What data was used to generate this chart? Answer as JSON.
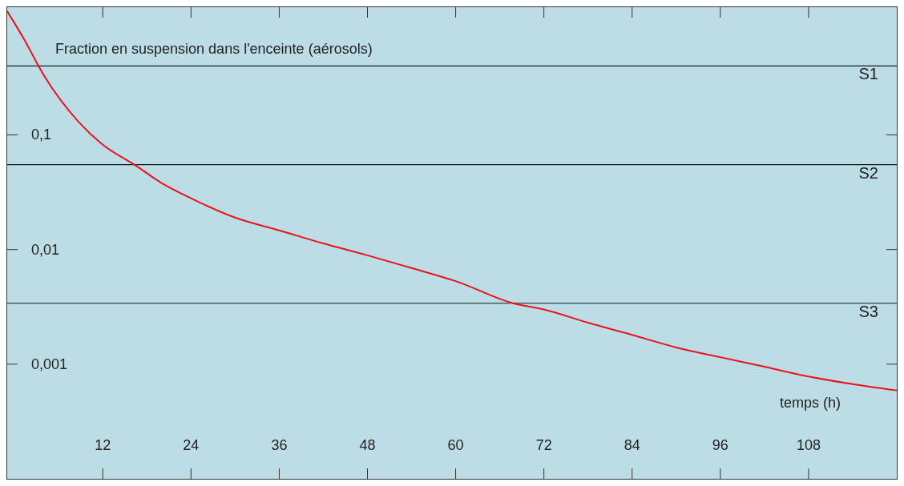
{
  "chart_data": {
    "type": "line",
    "ylabel": "Fraction en suspension dans l'enceinte (aérosols)",
    "xlabel": "temps (h)",
    "x": [
      -1,
      1.2,
      4,
      8.7,
      12,
      16.3,
      20,
      24,
      30,
      36,
      42,
      48,
      54,
      60,
      67.8,
      72,
      78,
      84,
      90,
      96,
      102,
      108,
      114,
      120
    ],
    "series": [
      {
        "color": "#e8141c",
        "values": [
          1.2,
          0.7,
          0.33,
          0.13,
          0.082,
          0.055,
          0.038,
          0.028,
          0.019,
          0.0147,
          0.0113,
          0.0089,
          0.0069,
          0.0053,
          0.0034,
          0.003,
          0.0023,
          0.0018,
          0.0014,
          0.00115,
          0.00095,
          0.00078,
          0.00067,
          0.00059
        ]
      }
    ],
    "xlim": [
      -1,
      120
    ],
    "xticks": [
      12,
      24,
      36,
      48,
      60,
      72,
      84,
      96,
      108
    ],
    "ylim": [
      0.0001,
      1.3
    ],
    "yticks": [
      {
        "value": 0.1,
        "label": "0,1"
      },
      {
        "value": 0.01,
        "label": "0,01"
      },
      {
        "value": 0.001,
        "label": "0,001"
      }
    ],
    "log": "y",
    "grid": false,
    "legend": false,
    "marker": "none",
    "line_style": "solid",
    "ref_lines": [
      {
        "axis": "y",
        "value": 0.4,
        "label": "S1",
        "color": "#1a1a1a"
      },
      {
        "axis": "y",
        "value": 0.055,
        "label": "S2",
        "color": "#1a1a1a"
      },
      {
        "axis": "y",
        "value": 0.0034,
        "label": "S3",
        "color": "#1a1a1a"
      }
    ]
  }
}
